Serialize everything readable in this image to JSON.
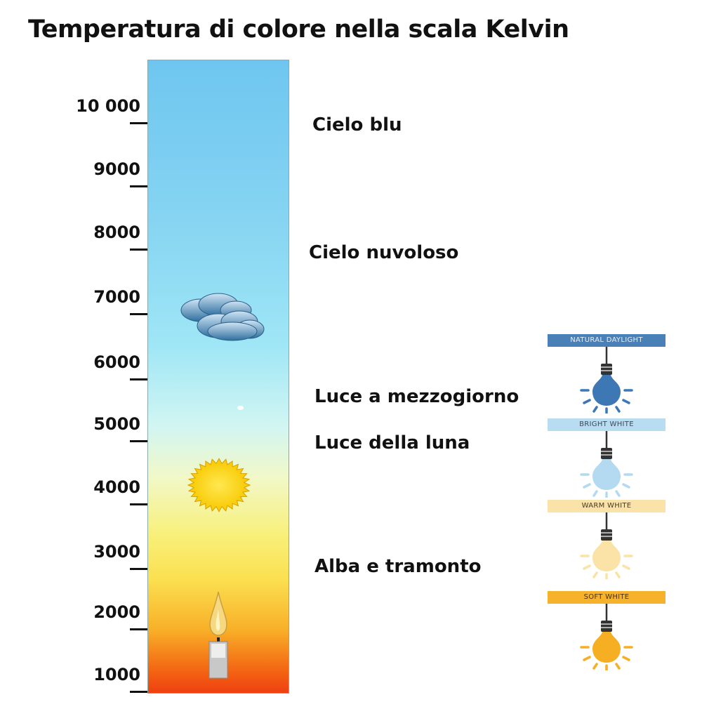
{
  "title": "Temperatura di colore nella scala Kelvin",
  "scale": {
    "ticks": [
      "10 000",
      "9000",
      "8000",
      "7000",
      "6000",
      "5000",
      "4000",
      "3000",
      "2000",
      "1000"
    ]
  },
  "labels": {
    "blue_sky": "Cielo blu",
    "cloudy_sky": "Cielo nuvoloso",
    "noon_light": "Luce a mezzogiorno",
    "moon_light": "Luce della luna",
    "sunrise_sunset": "Alba e tramonto"
  },
  "icons": [
    "cloud-icon",
    "sun-icon",
    "candle-icon",
    "light-bulb-icon"
  ],
  "bulbs": [
    {
      "label": "NATURAL DAYLIGHT",
      "banner_color": "#4a80b8",
      "text_color": "#e8f0f8",
      "bulb_color": "#3d78b4"
    },
    {
      "label": "BRIGHT WHITE",
      "banner_color": "#b8dcf2",
      "text_color": "#3a4a5a",
      "bulb_color": "#b4daf2"
    },
    {
      "label": "WARM WHITE",
      "banner_color": "#fae2a8",
      "text_color": "#4a3a20",
      "bulb_color": "#fbe2a6"
    },
    {
      "label": "SOFT WHITE",
      "banner_color": "#f6b22a",
      "text_color": "#4a3010",
      "bulb_color": "#f6ae22"
    }
  ]
}
